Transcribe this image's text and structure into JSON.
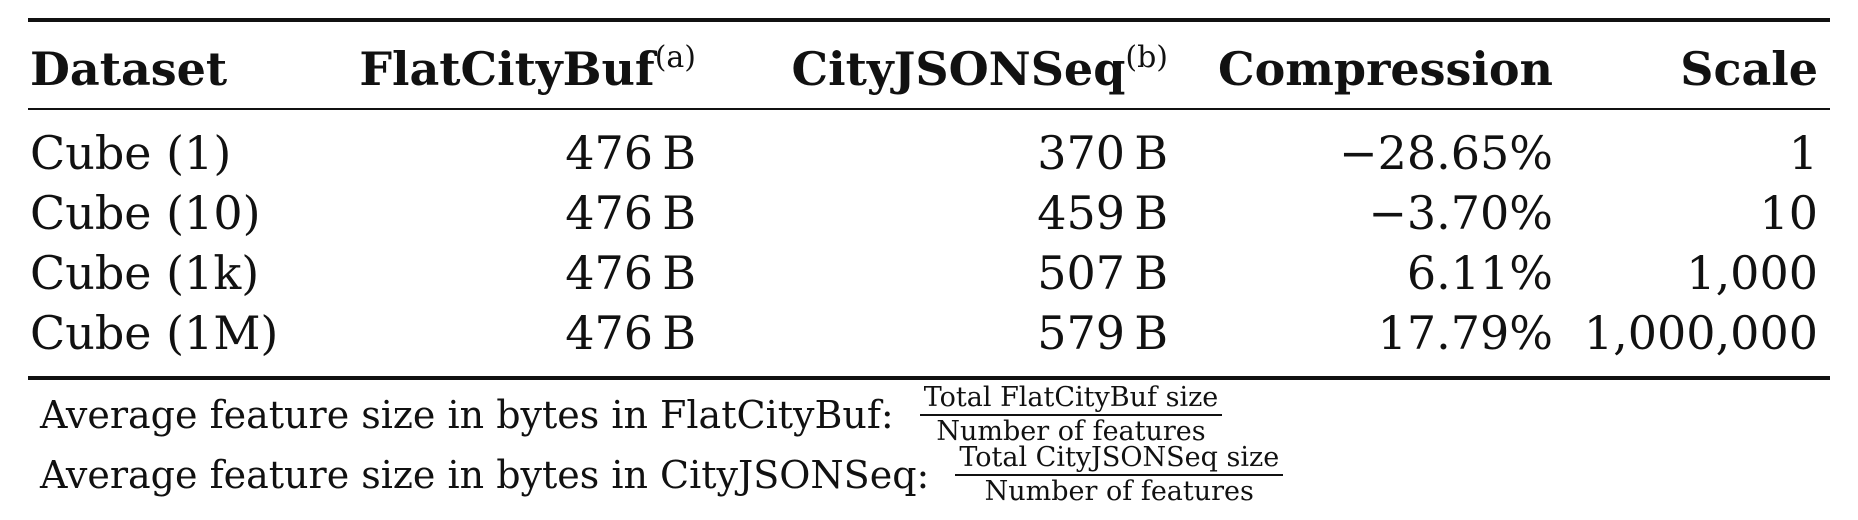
{
  "table": {
    "headers": {
      "dataset": "Dataset",
      "flatcitybuf": "FlatCityBuf",
      "flatcitybuf_note": "(a)",
      "cityjsonseq": "CityJSONSeq",
      "cityjsonseq_note": "(b)",
      "compression": "Compression",
      "scale": "Scale"
    },
    "rows": [
      {
        "dataset": "Cube (1)",
        "flatcitybuf": "476 B",
        "cityjsonseq": "370 B",
        "compression": "−28.65%",
        "scale": "1"
      },
      {
        "dataset": "Cube (10)",
        "flatcitybuf": "476 B",
        "cityjsonseq": "459 B",
        "compression": "−3.70%",
        "scale": "10"
      },
      {
        "dataset": "Cube (1k)",
        "flatcitybuf": "476 B",
        "cityjsonseq": "507 B",
        "compression": "6.11%",
        "scale": "1,000"
      },
      {
        "dataset": "Cube (1M)",
        "flatcitybuf": "476 B",
        "cityjsonseq": "579 B",
        "compression": "17.79%",
        "scale": "1,000,000"
      }
    ]
  },
  "notes": [
    {
      "label": "Average feature size in bytes in FlatCityBuf:",
      "numerator": "Total FlatCityBuf size",
      "denominator": "Number of features"
    },
    {
      "label": "Average feature size in bytes in CityJSONSeq:",
      "numerator": "Total CityJSONSeq size",
      "denominator": "Number of features"
    }
  ]
}
